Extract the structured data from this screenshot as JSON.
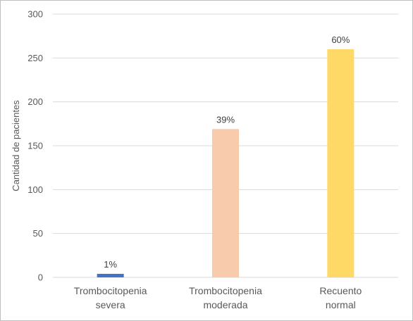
{
  "chart_data": {
    "type": "bar",
    "categories": [
      [
        "Trombocitopenia",
        "severa"
      ],
      [
        "Trombocitopenia",
        "moderada"
      ],
      [
        "Recuento",
        "normal"
      ]
    ],
    "values": [
      4,
      169,
      260
    ],
    "data_labels": [
      "1%",
      "39%",
      "60%"
    ],
    "bar_colors": [
      "#4472c4",
      "#f8cbad",
      "#ffd966"
    ],
    "title": "",
    "xlabel": "",
    "ylabel": "Cantidad de pacientes",
    "ylim": [
      0,
      300
    ],
    "yticks": [
      0,
      50,
      100,
      150,
      200,
      250,
      300
    ],
    "grid": true,
    "legend": "none"
  }
}
